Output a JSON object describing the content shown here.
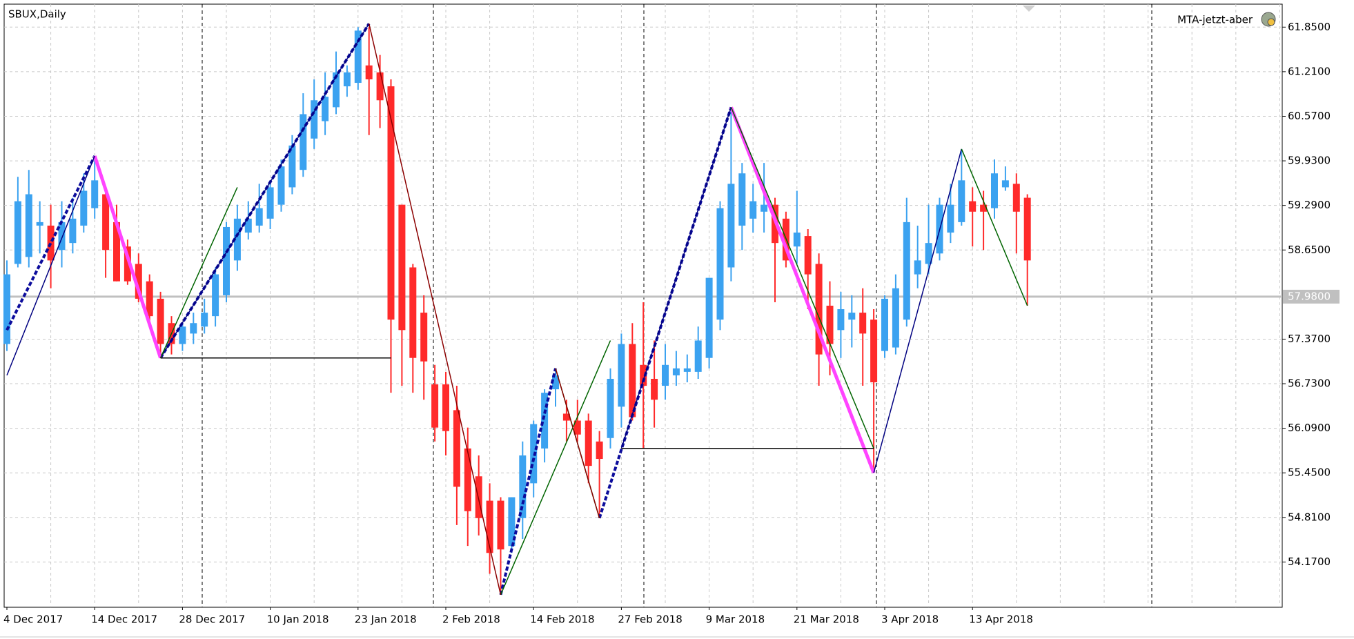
{
  "chart_data": {
    "type": "candlestick",
    "title": "SBUX,Daily",
    "indicator": "MTA-jetzt-aber",
    "categories": [
      "4 Dec 2017",
      null,
      null,
      null,
      null,
      null,
      null,
      null,
      "14 Dec 2017",
      null,
      null,
      null,
      null,
      null,
      null,
      null,
      "28 Dec 2017",
      null,
      null,
      null,
      null,
      null,
      null,
      null,
      "10 Jan 2018",
      null,
      null,
      null,
      null,
      null,
      null,
      null,
      "23 Jan 2018",
      null,
      null,
      null,
      null,
      null,
      null,
      null,
      "2 Feb 2018",
      null,
      null,
      null,
      null,
      null,
      null,
      null,
      "14 Feb 2018",
      null,
      null,
      null,
      null,
      null,
      null,
      null,
      "27 Feb 2018",
      null,
      null,
      null,
      null,
      null,
      null,
      null,
      "9 Mar 2018",
      null,
      null,
      null,
      null,
      null,
      null,
      null,
      "21 Mar 2018",
      null,
      null,
      null,
      null,
      null,
      null,
      null,
      "3 Apr 2018",
      null,
      null,
      null,
      null,
      null,
      null,
      null,
      "13 Apr 2018",
      null,
      null,
      null,
      null,
      null
    ],
    "open": [
      57.3,
      58.45,
      58.55,
      59.0,
      59.0,
      58.65,
      58.75,
      59.0,
      59.25,
      59.45,
      59.05,
      58.7,
      58.45,
      58.2,
      57.95,
      57.6,
      57.3,
      57.45,
      57.55,
      57.7,
      58.0,
      58.5,
      58.9,
      59.0,
      59.1,
      59.3,
      59.55,
      59.8,
      60.25,
      60.5,
      60.7,
      61.0,
      61.05,
      61.3,
      61.2,
      61.0,
      59.3,
      58.4,
      57.75,
      56.72,
      56.72,
      56.35,
      55.8,
      55.4,
      55.05,
      55.05,
      54.4,
      54.8,
      55.3,
      55.8,
      56.65,
      56.3,
      56.2,
      56.2,
      55.9,
      55.95,
      56.4,
      57.3,
      57.0,
      56.8,
      56.7,
      56.85,
      56.9,
      56.9,
      57.1,
      57.65,
      58.4,
      59.0,
      59.1,
      59.2,
      59.3,
      59.1,
      58.7,
      58.85,
      58.45,
      57.85,
      57.5,
      57.65,
      57.75,
      57.65,
      57.2,
      57.25,
      57.65,
      58.3,
      58.45,
      58.6,
      58.9,
      59.05,
      59.35,
      59.3,
      59.25,
      59.55,
      59.6,
      59.4
    ],
    "high": [
      58.5,
      59.7,
      59.8,
      59.35,
      59.3,
      59.35,
      59.4,
      59.75,
      60.0,
      59.55,
      59.3,
      58.8,
      58.6,
      58.3,
      58.05,
      57.7,
      57.6,
      57.75,
      57.95,
      58.4,
      59.05,
      59.3,
      59.35,
      59.6,
      59.65,
      59.95,
      60.3,
      60.9,
      61.1,
      61.2,
      61.5,
      61.3,
      61.85,
      61.85,
      61.45,
      61.1,
      59.3,
      58.45,
      58.0,
      57.0,
      56.9,
      56.7,
      56.1,
      55.7,
      55.3,
      55.1,
      55.1,
      55.9,
      56.2,
      56.65,
      56.95,
      56.5,
      56.5,
      56.3,
      56.05,
      56.95,
      57.45,
      57.6,
      57.9,
      57.35,
      57.3,
      57.2,
      57.15,
      57.55,
      58.25,
      59.35,
      60.7,
      59.9,
      59.6,
      59.9,
      59.4,
      59.2,
      59.5,
      58.95,
      58.6,
      58.2,
      58.05,
      58.0,
      58.1,
      57.8,
      58.0,
      58.3,
      59.4,
      59.0,
      59.3,
      59.4,
      59.6,
      60.1,
      59.55,
      59.5,
      59.95,
      59.85,
      59.75,
      59.45
    ],
    "low": [
      57.2,
      58.4,
      58.4,
      58.6,
      58.1,
      58.4,
      58.6,
      58.9,
      59.1,
      58.25,
      58.2,
      58.15,
      57.9,
      57.6,
      57.1,
      57.15,
      57.2,
      57.3,
      57.45,
      57.55,
      57.9,
      58.35,
      58.8,
      58.9,
      58.95,
      59.2,
      59.45,
      59.7,
      60.1,
      60.3,
      60.6,
      60.85,
      60.95,
      60.3,
      60.4,
      56.6,
      56.7,
      56.6,
      56.5,
      55.9,
      55.7,
      54.7,
      54.4,
      54.55,
      54.0,
      53.7,
      54.3,
      54.5,
      55.1,
      55.6,
      56.4,
      55.9,
      55.9,
      55.3,
      54.8,
      55.8,
      56.1,
      56.2,
      55.8,
      56.1,
      56.5,
      56.7,
      56.75,
      56.8,
      56.95,
      57.5,
      58.2,
      58.65,
      58.9,
      58.9,
      57.9,
      58.4,
      58.45,
      57.8,
      56.7,
      56.85,
      57.1,
      57.25,
      56.7,
      55.45,
      57.1,
      57.15,
      57.55,
      58.1,
      58.3,
      58.5,
      58.75,
      59.0,
      58.7,
      58.65,
      59.1,
      59.5,
      58.6,
      57.85
    ],
    "close": [
      58.3,
      59.35,
      59.45,
      59.05,
      58.5,
      59.05,
      59.1,
      59.5,
      59.65,
      58.65,
      58.2,
      58.2,
      57.95,
      57.7,
      57.3,
      57.3,
      57.55,
      57.6,
      57.75,
      58.3,
      58.98,
      59.1,
      59.1,
      59.25,
      59.55,
      59.85,
      60.15,
      60.6,
      60.8,
      60.85,
      61.2,
      61.2,
      61.8,
      61.1,
      60.8,
      57.65,
      57.5,
      57.1,
      57.05,
      56.1,
      56.05,
      55.25,
      54.9,
      54.8,
      54.3,
      54.35,
      55.1,
      55.7,
      56.15,
      56.6,
      56.85,
      56.2,
      56.0,
      55.55,
      55.65,
      56.8,
      57.3,
      56.25,
      56.7,
      56.5,
      57.0,
      56.95,
      56.95,
      57.35,
      58.25,
      59.25,
      59.6,
      59.75,
      59.35,
      59.3,
      58.75,
      58.5,
      58.9,
      58.3,
      57.15,
      57.3,
      57.8,
      57.75,
      57.45,
      56.75,
      57.95,
      58.1,
      59.05,
      58.5,
      58.75,
      59.3,
      59.3,
      59.65,
      59.2,
      59.2,
      59.75,
      59.65,
      59.2,
      58.5
    ],
    "up_color": "#3ba2f0",
    "down_color": "#ff2a2a",
    "ylim": [
      53.52,
      62.18
    ],
    "yticks": [
      {
        "value": 61.85,
        "label": "61.8500"
      },
      {
        "value": 61.21,
        "label": "61.2100"
      },
      {
        "value": 60.57,
        "label": "60.5700"
      },
      {
        "value": 59.93,
        "label": "59.9300"
      },
      {
        "value": 59.29,
        "label": "59.2900"
      },
      {
        "value": 58.65,
        "label": "58.6500"
      },
      {
        "value": 57.37,
        "label": "57.3700"
      },
      {
        "value": 56.73,
        "label": "56.7300"
      },
      {
        "value": 56.09,
        "label": "56.0900"
      },
      {
        "value": 55.45,
        "label": "55.4500"
      },
      {
        "value": 54.81,
        "label": "54.8100"
      },
      {
        "value": 54.17,
        "label": "54.1700"
      }
    ],
    "current_price": {
      "value": 57.98,
      "label": "57.9800"
    },
    "grid": true,
    "overlays": [
      {
        "color": "#0c0c9c",
        "style": "dashed",
        "x": [
          0,
          8,
          null,
          14,
          33,
          null,
          45,
          50,
          null,
          54,
          66
        ],
        "y": [
          57.5,
          60.0,
          null,
          57.1,
          61.9,
          null,
          53.7,
          56.95,
          null,
          54.8,
          60.7
        ]
      },
      {
        "color": "#ff44ff",
        "style": "thick",
        "x": [
          8,
          14,
          null,
          66,
          79
        ],
        "y": [
          60.0,
          57.1,
          null,
          60.7,
          55.45
        ]
      },
      {
        "color": "#000080",
        "style": "thin",
        "x": [
          0,
          8,
          null,
          14,
          33,
          null,
          56,
          66,
          null,
          79,
          87
        ],
        "y": [
          56.85,
          60.0,
          null,
          57.1,
          61.9,
          null,
          55.8,
          60.7,
          null,
          55.45,
          60.1
        ]
      },
      {
        "color": "#006400",
        "style": "thin",
        "x": [
          14,
          21,
          null,
          45,
          55,
          null,
          50,
          54,
          null,
          66,
          79,
          null,
          87,
          93
        ],
        "y": [
          57.1,
          59.55,
          null,
          53.7,
          57.35,
          null,
          56.95,
          54.8,
          null,
          60.7,
          55.8,
          null,
          60.1,
          57.85
        ]
      },
      {
        "color": "#8b0000",
        "style": "thin",
        "x": [
          33,
          45,
          null,
          50,
          54
        ],
        "y": [
          61.9,
          53.7,
          null,
          56.95,
          54.8
        ]
      },
      {
        "color": "#000000",
        "style": "thin",
        "x": [
          14,
          35,
          null,
          56,
          79
        ],
        "y": [
          57.1,
          57.1,
          null,
          55.8,
          55.8
        ]
      }
    ]
  }
}
